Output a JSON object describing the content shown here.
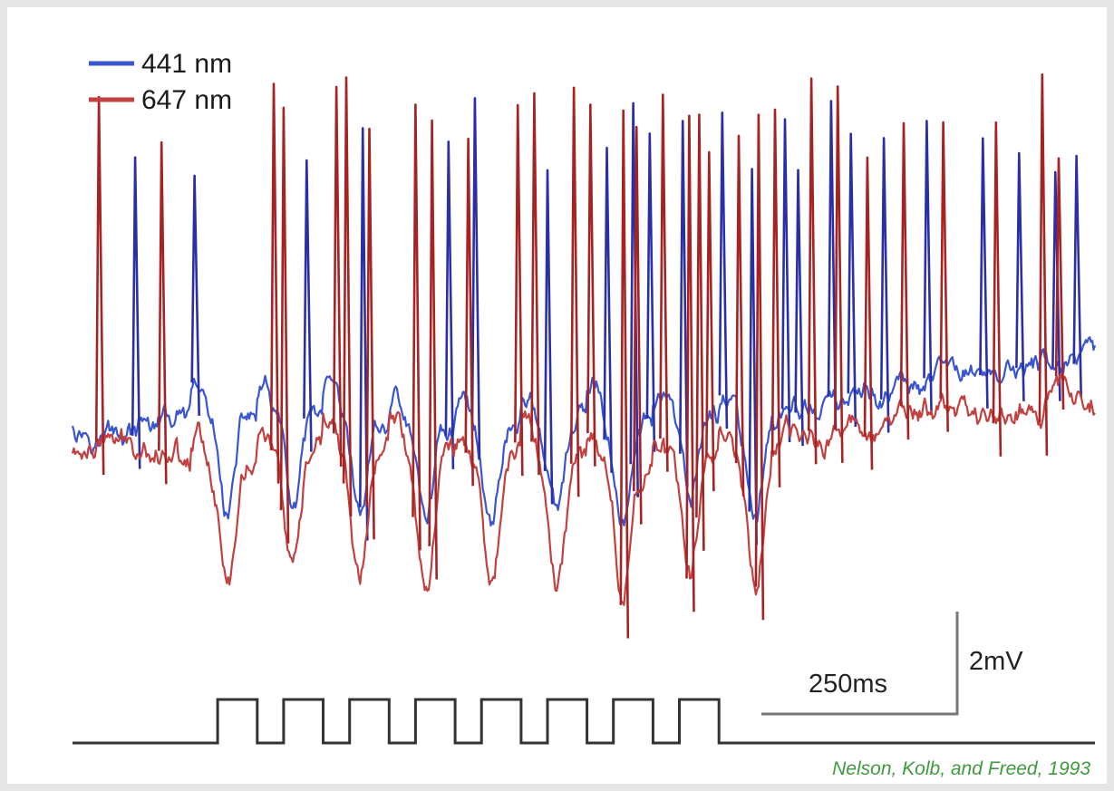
{
  "chart_data": {
    "type": "line",
    "title": "",
    "xlabel": "",
    "ylabel": "",
    "grid": false,
    "legend_placement": "top-left",
    "axes_visible": false,
    "xlim_ms": [
      0,
      1550
    ],
    "ylim_mV": [
      -4,
      6.8
    ],
    "series": [
      {
        "name": "441 nm",
        "color": "#3a55d0",
        "spike_color": "#2a2fa5",
        "baseline_start_mV": 0.0,
        "baseline_end_mV": 1.1,
        "noise_mV": 0.28,
        "trough_mV": -2.0,
        "spike_peak_mV": 6.0,
        "spike_times_ms": [
          95,
          185,
          355,
          440,
          570,
          610,
          720,
          810,
          850,
          875,
          925,
          985,
          1030,
          1080,
          1100,
          1150,
          1180,
          1230,
          1295,
          1380,
          1435,
          1490,
          1522
        ]
      },
      {
        "name": "647 nm",
        "color": "#c0413f",
        "spike_color": "#a52323",
        "baseline_start_mV": -0.6,
        "baseline_end_mV": 0.6,
        "noise_mV": 0.3,
        "trough_mV": -3.3,
        "spike_peak_mV": 6.3,
        "spike_times_ms": [
          40,
          135,
          305,
          320,
          400,
          415,
          450,
          520,
          545,
          600,
          675,
          700,
          760,
          785,
          835,
          855,
          895,
          935,
          950,
          965,
          1010,
          1040,
          1065,
          1120,
          1160,
          1205,
          1260,
          1320,
          1400,
          1470,
          1495
        ]
      }
    ],
    "stimulus": {
      "label": "stimulus",
      "onset_ms": 220,
      "pulse_count": 8,
      "period_ms": 100,
      "pulse_width_ms": 60,
      "end_ms": 1550
    },
    "annotations": {
      "time_scale_label": "250ms",
      "time_scale_ms": 250,
      "voltage_scale_label": "2mV",
      "voltage_scale_mV": 2,
      "credit": "Nelson, Kolb, and Freed, 1993"
    }
  }
}
